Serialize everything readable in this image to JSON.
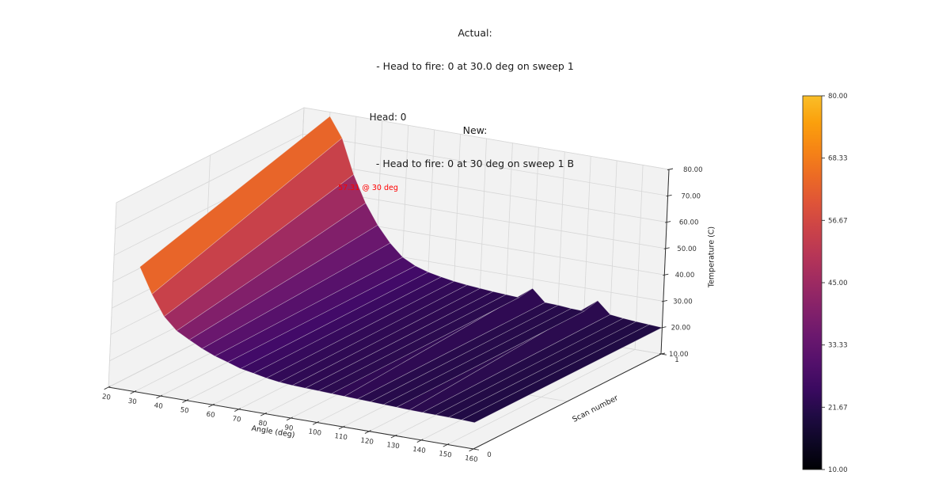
{
  "figure": {
    "suptitle": {
      "line1": "Actual:",
      "line2": "- Head to fire: 0 at 30.0 deg on sweep 1",
      "line3": "New:",
      "line4": "- Head to fire: 0 at 30 deg on sweep 1 B"
    },
    "axes_title": "Head: 0",
    "annotation": {
      "text": "57.31 @ 30 deg",
      "color": "#ff0000"
    }
  },
  "chart_data": {
    "type": "surface3d",
    "title": "Head: 0",
    "xlabel": "Angle (deg)",
    "ylabel": "Scan number",
    "zlabel": "Temperature (C)",
    "xlim": [
      20,
      160
    ],
    "ylim": [
      0,
      1
    ],
    "zlim": [
      10,
      80
    ],
    "x_ticks": [
      20,
      30,
      40,
      50,
      60,
      70,
      80,
      90,
      100,
      110,
      120,
      130,
      140,
      150,
      160
    ],
    "y_ticks": [
      0,
      1
    ],
    "z_ticks": [
      10,
      20,
      30,
      40,
      50,
      60,
      70,
      80
    ],
    "grid": true,
    "peak_annotation": {
      "value": 57.31,
      "angle": 30,
      "text": "57.31 @ 30 deg"
    },
    "x": [
      30,
      35,
      40,
      45,
      50,
      55,
      60,
      65,
      70,
      75,
      80,
      85,
      90,
      95,
      100,
      105,
      110,
      115,
      120,
      125,
      130,
      135,
      140,
      145,
      150,
      155,
      160
    ],
    "series": [
      {
        "name": "scan 0",
        "values": [
          57.31,
          47.8,
          40.2,
          35.6,
          33.0,
          30.5,
          28.5,
          27.0,
          25.4,
          24.5,
          23.5,
          22.8,
          22.4,
          22.2,
          22.0,
          21.8,
          21.6,
          21.4,
          21.2,
          21.0,
          20.8,
          20.6,
          20.5,
          20.4,
          20.3,
          20.2,
          20.0
        ]
      },
      {
        "name": "scan 1",
        "values": [
          78.4,
          71.0,
          58.0,
          48.0,
          40.5,
          34.5,
          30.0,
          27.5,
          26.0,
          25.0,
          24.2,
          23.6,
          23.2,
          22.8,
          22.5,
          22.2,
          26.5,
          22.0,
          21.8,
          21.4,
          21.2,
          26.0,
          21.6,
          21.0,
          20.6,
          20.3,
          20.0
        ]
      }
    ],
    "colormap": "inferno",
    "colormap_stops": [
      {
        "t": 0.0,
        "hex": "#000004"
      },
      {
        "t": 0.1,
        "hex": "#160b39"
      },
      {
        "t": 0.2,
        "hex": "#420a68"
      },
      {
        "t": 0.3,
        "hex": "#6a176e"
      },
      {
        "t": 0.4,
        "hex": "#932667"
      },
      {
        "t": 0.5,
        "hex": "#bc3754"
      },
      {
        "t": 0.6,
        "hex": "#dd513a"
      },
      {
        "t": 0.7,
        "hex": "#f37819"
      },
      {
        "t": 0.8,
        "hex": "#fca50a"
      },
      {
        "t": 0.9,
        "hex": "#f6d746"
      },
      {
        "t": 1.0,
        "hex": "#fcffa4"
      }
    ],
    "colorbar": {
      "tick_values": [
        80,
        68.33,
        56.67,
        45,
        33.33,
        21.67,
        10
      ],
      "tick_labels": [
        "80.00",
        "68.33",
        "56.67",
        "45.00",
        "33.33",
        "21.67",
        "10.00"
      ],
      "min": 10,
      "max": 80
    }
  }
}
